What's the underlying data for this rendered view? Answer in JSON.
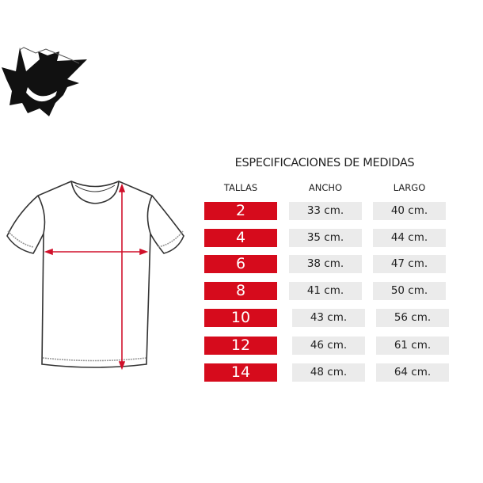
{
  "title": "ESPECIFICACIONES DE MEDIDAS",
  "headers": {
    "tallas": "TALLAS",
    "ancho": "ANCHO",
    "largo": "LARGO"
  },
  "rows": [
    {
      "talla": "2",
      "ancho": "33 cm.",
      "largo": "40 cm."
    },
    {
      "talla": "4",
      "ancho": "35 cm.",
      "largo": "44 cm."
    },
    {
      "talla": "6",
      "ancho": "38 cm.",
      "largo": "47 cm."
    },
    {
      "talla": "8",
      "ancho": "41 cm.",
      "largo": "50 cm."
    },
    {
      "talla": "10",
      "ancho": "43 cm.",
      "largo": "56 cm."
    },
    {
      "talla": "12",
      "ancho": "46 cm.",
      "largo": "61 cm."
    },
    {
      "talla": "14",
      "ancho": "48 cm.",
      "largo": "64 cm."
    }
  ],
  "colors": {
    "accent": "#d60b1c",
    "cell": "#ebebeb"
  },
  "icons": {
    "logo": "ghost-face-logo",
    "diagram": "tshirt-measurement-diagram"
  }
}
